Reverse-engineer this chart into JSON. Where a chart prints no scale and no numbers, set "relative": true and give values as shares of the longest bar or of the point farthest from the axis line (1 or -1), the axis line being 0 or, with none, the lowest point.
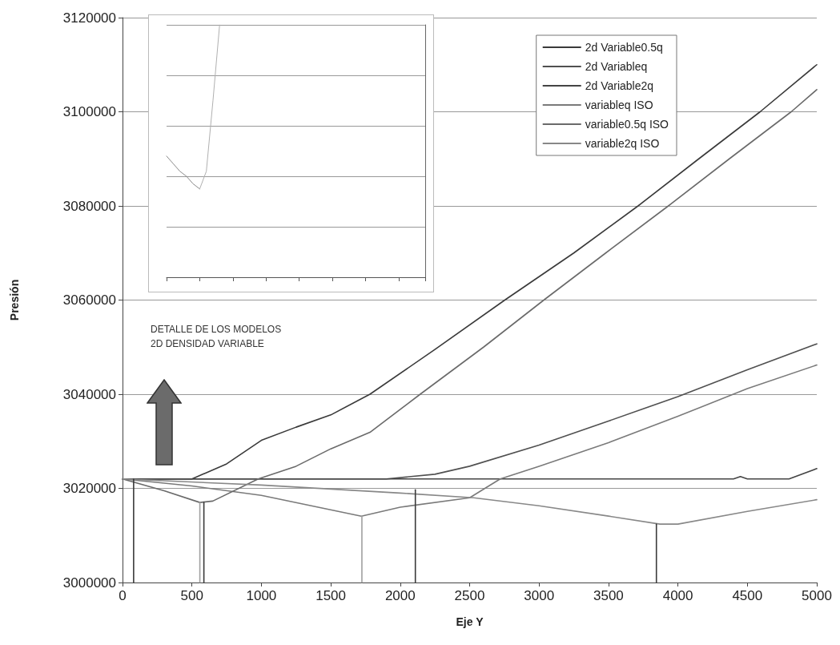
{
  "chart_data": [
    {
      "type": "line",
      "xlabel": "Eje Y",
      "ylabel": "Presión",
      "annotations": [
        "DETALLE DE LOS MODELOS\n2D DENSIDAD VARIABLE"
      ],
      "xlim": [
        0,
        5000
      ],
      "ylim": [
        3000000,
        3120000
      ],
      "xticks": [
        0,
        500,
        1000,
        1500,
        2000,
        2500,
        3000,
        3500,
        4000,
        4500,
        5000
      ],
      "yticks": [
        3000000,
        3020000,
        3040000,
        3060000,
        3080000,
        3100000,
        3120000
      ],
      "grid": "y",
      "legend": "top right",
      "marker": "none",
      "line_style": "solid",
      "series": [
        {
          "name": "2d Variable0.5q",
          "color": "#3a3a3a",
          "x": [
            0,
            500,
            750,
            1000,
            1250,
            1500,
            1782,
            2250,
            2753,
            3250,
            3713,
            4150,
            4592,
            5000
          ],
          "values": [
            3022000,
            3022000,
            3025200,
            3030200,
            3033000,
            3035600,
            3040000,
            3049500,
            3060000,
            3070000,
            3080000,
            3090000,
            3100000,
            3110000
          ]
        },
        {
          "name": "2d Variableq",
          "color": "#505050",
          "x": [
            0,
            1000,
            1900,
            2250,
            2500,
            3000,
            3500,
            4000,
            4500,
            5000
          ],
          "values": [
            3022000,
            3022000,
            3022000,
            3023000,
            3024700,
            3029200,
            3034300,
            3039500,
            3045200,
            3050700
          ]
        },
        {
          "name": "2d Variable2q",
          "color": "#444444",
          "x": [
            0,
            1000,
            2000,
            3000,
            4000,
            4400,
            4450,
            4500,
            4800,
            5000
          ],
          "values": [
            3022000,
            3022000,
            3022000,
            3022000,
            3022000,
            3022000,
            3022500,
            3022000,
            3022000,
            3024200
          ]
        },
        {
          "name": "variableq ISO",
          "color": "#7a7a7a",
          "x": [
            0,
            500,
            1000,
            1720,
            2000,
            2500,
            2720,
            3000,
            3500,
            4000,
            4500,
            5000
          ],
          "values": [
            3022000,
            3020500,
            3018500,
            3014100,
            3016000,
            3018000,
            3022000,
            3024700,
            3029700,
            3035300,
            3041200,
            3046200
          ]
        },
        {
          "name": "variable0.5q ISO",
          "color": "#6a6a6a",
          "x": [
            0,
            300,
            557,
            650,
            977,
            1250,
            1500,
            1782,
            2144,
            2600,
            3034,
            3480,
            3931,
            4370,
            4816,
            5000
          ],
          "values": [
            3022000,
            3019500,
            3017000,
            3017300,
            3022000,
            3024700,
            3028400,
            3031900,
            3040000,
            3050000,
            3060000,
            3070000,
            3080000,
            3090000,
            3100000,
            3104700
          ]
        },
        {
          "name": "variable2q ISO",
          "color": "#888888",
          "x": [
            0,
            1000,
            2000,
            2529,
            3000,
            3500,
            3870,
            4000,
            4500,
            5000
          ],
          "values": [
            3022000,
            3020700,
            3019000,
            3018000,
            3016300,
            3014100,
            3012400,
            3012400,
            3015100,
            3017600
          ]
        },
        {
          "color": "#3a3a3a",
          "x": [
            80,
            80
          ],
          "values": [
            3000000,
            3022000
          ]
        },
        {
          "color": "#a0a0a0",
          "x": [
            557,
            557
          ],
          "values": [
            3000000,
            3017000
          ]
        },
        {
          "color": "#3a3a3a",
          "x": [
            586,
            586
          ],
          "values": [
            3000000,
            3017000
          ]
        },
        {
          "color": "#a0a0a0",
          "x": [
            1724,
            1724
          ],
          "values": [
            3000000,
            3014100
          ]
        },
        {
          "color": "#3a3a3a",
          "x": [
            2109,
            2109
          ],
          "values": [
            3000000,
            3019700
          ]
        },
        {
          "color": "#3a3a3a",
          "x": [
            3845,
            3845
          ],
          "values": [
            3000000,
            3012400
          ]
        }
      ]
    },
    {
      "type": "line",
      "relative": true,
      "grid": "y",
      "marker": "none",
      "categories": [
        null,
        null,
        null,
        null,
        null,
        null,
        null,
        null,
        null,
        null,
        null,
        null,
        null,
        null,
        null,
        null,
        null,
        null,
        null,
        null,
        null,
        null,
        null,
        null,
        null,
        null,
        null,
        null,
        null,
        null,
        null,
        null,
        null,
        null,
        null,
        null,
        null,
        null,
        null,
        null
      ],
      "series": [
        {
          "color": "#8a8a8a",
          "values": [
            0.48,
            0.45,
            0.42,
            0.4,
            0.37,
            0.35,
            null,
            null,
            null,
            null,
            null,
            null,
            null,
            null,
            null,
            null,
            null,
            null,
            null,
            null,
            null,
            null,
            null,
            null,
            null,
            null,
            null,
            null,
            null,
            null,
            null,
            null,
            null,
            null,
            null,
            null,
            null,
            null,
            null,
            null
          ]
        },
        {
          "color": "#b0b0b0",
          "values": [
            null,
            null,
            null,
            null,
            null,
            0.35,
            0.42,
            0.7,
            1,
            null,
            null,
            null,
            null,
            null,
            null,
            null,
            null,
            null,
            null,
            null,
            null,
            null,
            null,
            null,
            null,
            null,
            null,
            null,
            null,
            null,
            null,
            null,
            null,
            null,
            null,
            null,
            null,
            null,
            null,
            null
          ]
        }
      ]
    }
  ]
}
